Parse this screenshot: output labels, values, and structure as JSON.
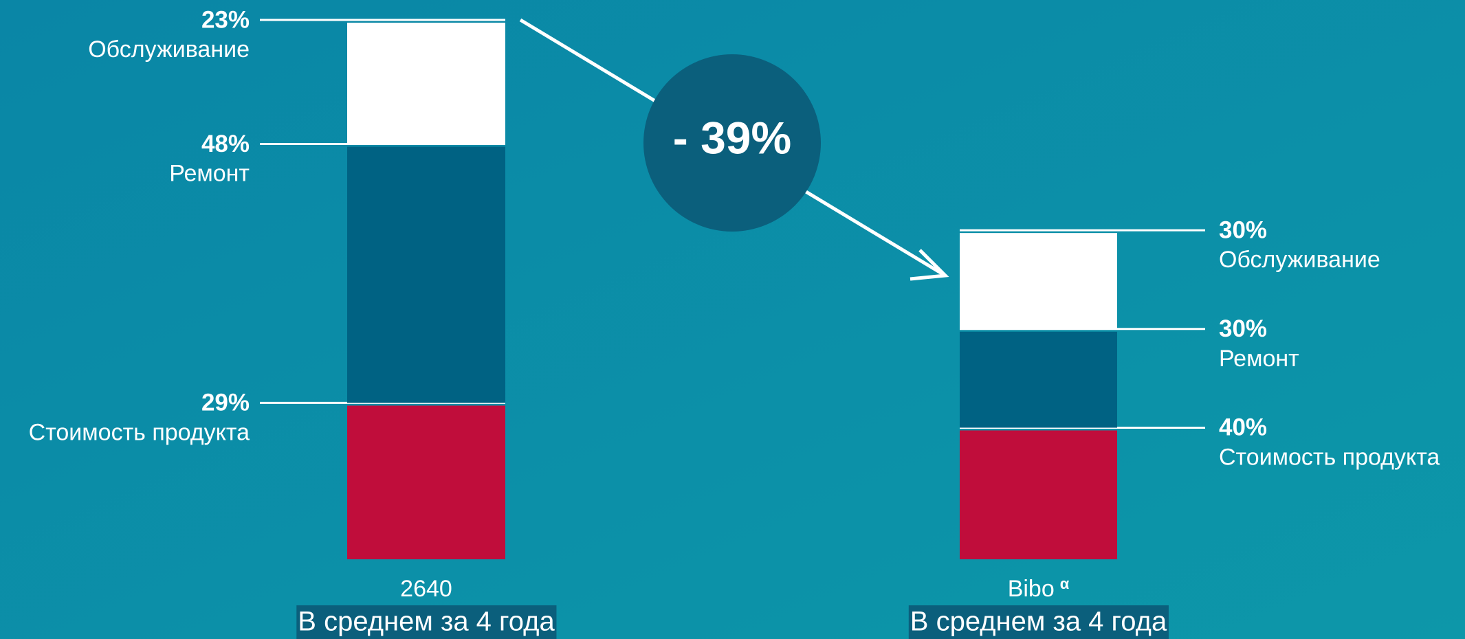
{
  "chart_data": {
    "type": "bar",
    "stacked": true,
    "categories": [
      "2640",
      "Bibo"
    ],
    "superscript": {
      "index": 1,
      "text": "α"
    },
    "category_notes": [
      "В среднем за 4 года",
      "В среднем за 4 года"
    ],
    "series": [
      {
        "name": "Стоимость продукта",
        "color": "#c00d3b",
        "values": [
          29,
          40
        ],
        "value_labels": [
          "29%",
          "40%"
        ]
      },
      {
        "name": "Ремонт",
        "color": "#006283",
        "values": [
          48,
          30
        ],
        "value_labels": [
          "48%",
          "30%"
        ]
      },
      {
        "name": "Обслуживание",
        "color": "#ffffff",
        "values": [
          23,
          30
        ],
        "value_labels": [
          "23%",
          "30%"
        ]
      }
    ],
    "annotation": {
      "value": -39,
      "label": "- 39%"
    },
    "ylim": [
      0,
      100
    ]
  }
}
